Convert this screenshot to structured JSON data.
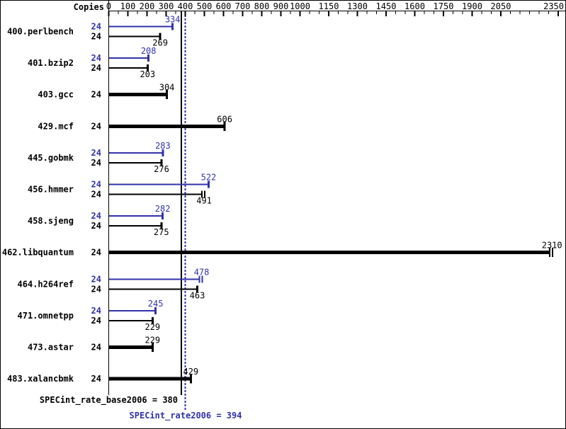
{
  "header": {
    "copies_label": "Copies"
  },
  "colors": {
    "peak": "#3232aa",
    "base": "#000000",
    "background": "#ffffff",
    "border": "#000000"
  },
  "chart_data": {
    "type": "bar",
    "orientation": "horizontal",
    "title": "",
    "xlabel": "",
    "ylabel": "",
    "grid": false,
    "legend_position": "none",
    "axis": {
      "min": 0,
      "max": 2350,
      "labeled_ticks": [
        0,
        100,
        200,
        300,
        400,
        500,
        600,
        700,
        800,
        900,
        1000,
        1150,
        1300,
        1450,
        1600,
        1750,
        1900,
        2050,
        2350
      ],
      "minor_tick_step": 50
    },
    "copies_column_header": "Copies",
    "benchmarks": [
      {
        "name": "400.perlbench",
        "copies": 24,
        "peak": 334,
        "base": 269,
        "double_cap": null
      },
      {
        "name": "401.bzip2",
        "copies": 24,
        "peak": 208,
        "base": 203,
        "double_cap": null
      },
      {
        "name": "403.gcc",
        "copies": 24,
        "peak": null,
        "base": 304,
        "double_cap": null
      },
      {
        "name": "429.mcf",
        "copies": 24,
        "peak": null,
        "base": 606,
        "double_cap": null
      },
      {
        "name": "445.gobmk",
        "copies": 24,
        "peak": 283,
        "base": 276,
        "double_cap": null
      },
      {
        "name": "456.hmmer",
        "copies": 24,
        "peak": 522,
        "base": 491,
        "double_cap": "base"
      },
      {
        "name": "458.sjeng",
        "copies": 24,
        "peak": 282,
        "base": 275,
        "double_cap": null
      },
      {
        "name": "462.libquantum",
        "copies": 24,
        "peak": null,
        "base": 2310,
        "double_cap": "base"
      },
      {
        "name": "464.h264ref",
        "copies": 24,
        "peak": 478,
        "base": 463,
        "double_cap": "peak"
      },
      {
        "name": "471.omnetpp",
        "copies": 24,
        "peak": 245,
        "base": 229,
        "double_cap": null
      },
      {
        "name": "473.astar",
        "copies": 24,
        "peak": null,
        "base": 229,
        "double_cap": null
      },
      {
        "name": "483.xalancbmk",
        "copies": 24,
        "peak": null,
        "base": 429,
        "double_cap": null
      }
    ],
    "reference_lines": [
      {
        "label": "SPECint_rate_base2006 = 380",
        "metric": "SPECint_rate_base2006",
        "value": 380,
        "color": "#000000",
        "style": "solid"
      },
      {
        "label": "SPECint_rate2006 = 394",
        "metric": "SPECint_rate2006",
        "value": 394,
        "color": "#3232aa",
        "style": "dotted"
      }
    ]
  }
}
